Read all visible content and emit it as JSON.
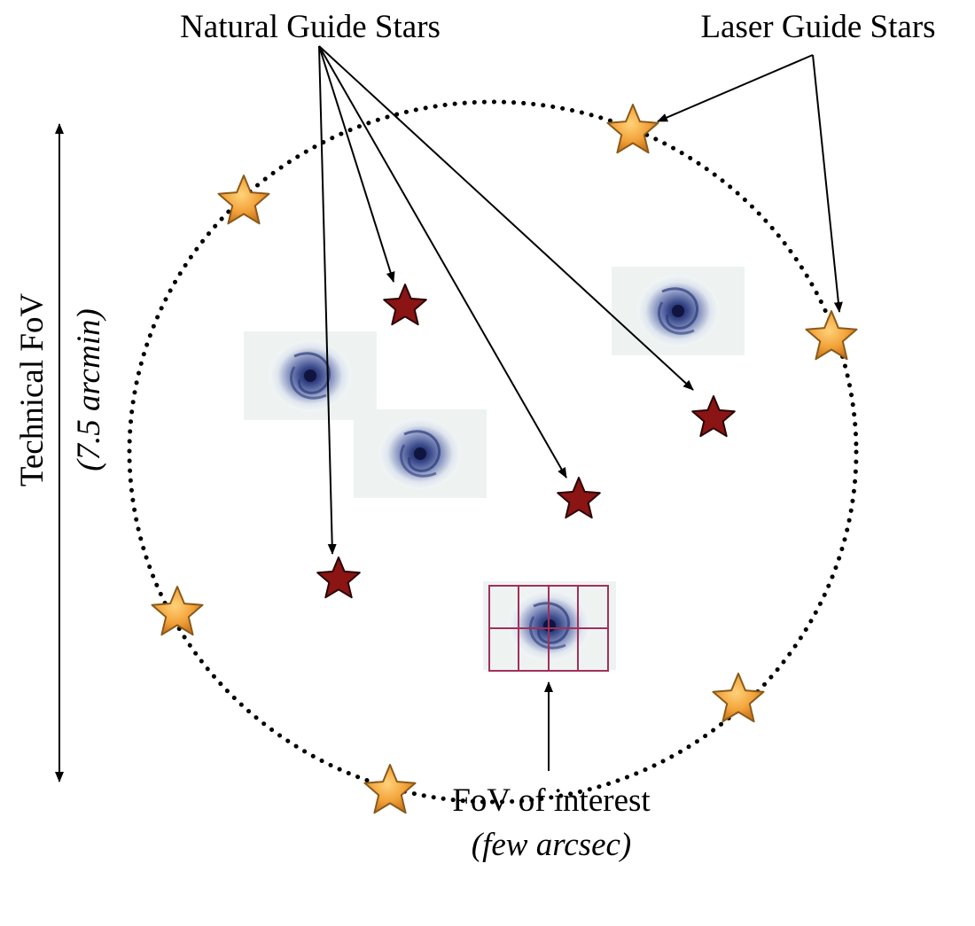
{
  "labels": {
    "natural_guide_stars": "Natural Guide Stars",
    "laser_guide_stars": "Laser Guide Stars",
    "technical_fov": "Technical FoV",
    "technical_fov_size": "(7.5 arcmin)",
    "fov_of_interest": "FoV of interest",
    "fov_of_interest_size": "(few arcsec)"
  },
  "colors": {
    "natural_star": "#8b1414",
    "laser_star": "#f2a23a",
    "ifu_grid": "#a0305a",
    "galaxy_core": "#1e2f6e"
  }
}
